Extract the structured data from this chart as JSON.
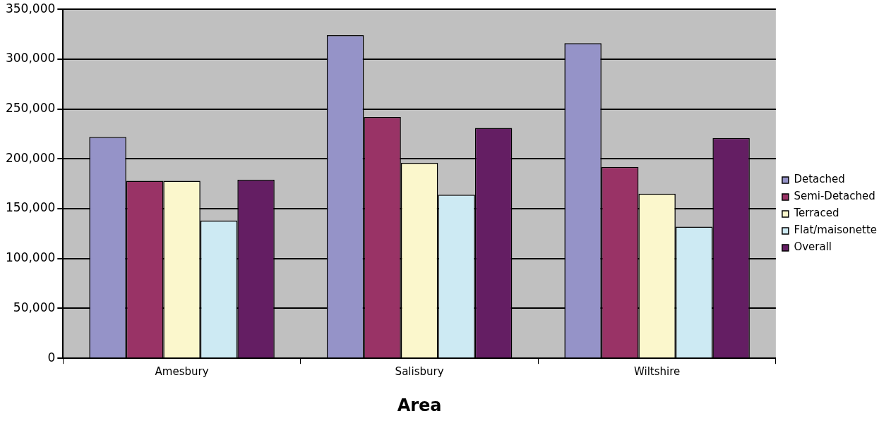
{
  "chart_data": {
    "type": "bar",
    "xlabel": "Area",
    "categories": [
      "Amesbury",
      "Salisbury",
      "Wiltshire"
    ],
    "series": [
      {
        "name": "Detached",
        "color": "#9593c8",
        "values": [
          222000,
          324000,
          316000
        ]
      },
      {
        "name": "Semi-Detached",
        "color": "#993366",
        "values": [
          178000,
          242000,
          192000
        ]
      },
      {
        "name": "Terraced",
        "color": "#fbf7cc",
        "values": [
          178000,
          196000,
          165000
        ]
      },
      {
        "name": "Flat/maisonette",
        "color": "#cdeaf3",
        "values": [
          138000,
          164000,
          132000
        ]
      },
      {
        "name": "Overall",
        "color": "#641e63",
        "values": [
          179000,
          231000,
          221000
        ]
      }
    ],
    "ylim": [
      0,
      350000
    ],
    "yticks": [
      0,
      {
        "value": 50000,
        "label": "50,000"
      },
      {
        "value": 100000,
        "label": "100,000"
      },
      {
        "value": 150000,
        "label": "150,000"
      },
      {
        "value": 200000,
        "label": "200,000"
      },
      {
        "value": 250000,
        "label": "250,000"
      },
      {
        "value": 300000,
        "label": "300,000"
      },
      {
        "value": 350000,
        "label": "350,000"
      }
    ],
    "grid": "y",
    "legend": "right"
  }
}
